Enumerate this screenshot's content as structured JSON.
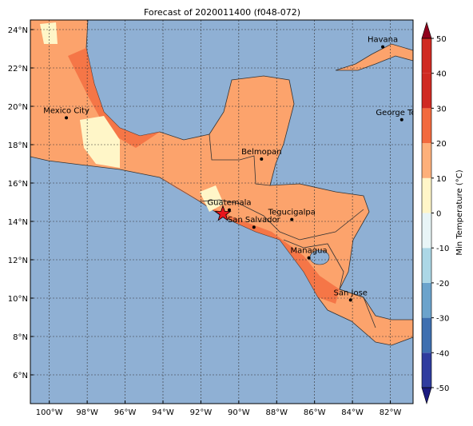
{
  "map": {
    "title": "Forecast of 2020011400 (f048-072)",
    "xlim": [
      -101.0,
      -80.8
    ],
    "ylim": [
      4.5,
      24.5
    ],
    "xticks": [
      {
        "value": -100,
        "label": "100°W"
      },
      {
        "value": -98,
        "label": "98°W"
      },
      {
        "value": -96,
        "label": "96°W"
      },
      {
        "value": -94,
        "label": "94°W"
      },
      {
        "value": -92,
        "label": "92°W"
      },
      {
        "value": -90,
        "label": "90°W"
      },
      {
        "value": -88,
        "label": "88°W"
      },
      {
        "value": -86,
        "label": "86°W"
      },
      {
        "value": -84,
        "label": "84°W"
      },
      {
        "value": -82,
        "label": "82°W"
      }
    ],
    "yticks": [
      {
        "value": 6,
        "label": "6°N"
      },
      {
        "value": 8,
        "label": "8°N"
      },
      {
        "value": 10,
        "label": "10°N"
      },
      {
        "value": 12,
        "label": "12°N"
      },
      {
        "value": 14,
        "label": "14°N"
      },
      {
        "value": 16,
        "label": "16°N"
      },
      {
        "value": 18,
        "label": "18°N"
      },
      {
        "value": 20,
        "label": "20°N"
      },
      {
        "value": 22,
        "label": "22°N"
      },
      {
        "value": 24,
        "label": "24°N"
      }
    ],
    "grid": true,
    "cities": [
      {
        "name": "Havana",
        "lon": -82.4,
        "lat": 23.1
      },
      {
        "name": "Mexico City",
        "lon": -99.1,
        "lat": 19.4
      },
      {
        "name": "George Town",
        "lon": -81.4,
        "lat": 19.3
      },
      {
        "name": "Belmopan",
        "lon": -88.8,
        "lat": 17.25
      },
      {
        "name": "Guatemala",
        "lon": -90.5,
        "lat": 14.6
      },
      {
        "name": "San Salvador",
        "lon": -89.2,
        "lat": 13.7
      },
      {
        "name": "Tegucigalpa",
        "lon": -87.2,
        "lat": 14.1
      },
      {
        "name": "Managua",
        "lon": -86.3,
        "lat": 12.1
      },
      {
        "name": "San Jose",
        "lon": -84.1,
        "lat": 9.9
      }
    ],
    "colorbar": {
      "label": "Min Temperature (°C)",
      "lim": [
        -50,
        50
      ],
      "ticks": [
        -50,
        -40,
        -30,
        -20,
        -10,
        0,
        10,
        20,
        30,
        40,
        50
      ],
      "colors": [
        "#1a1a80",
        "#2f3c9f",
        "#3e6fb0",
        "#6ba3cc",
        "#acd7e6",
        "#e8f5f7",
        "#fff6c8",
        "#fdb07a",
        "#f26a3e",
        "#d02a22",
        "#90001c"
      ]
    }
  }
}
